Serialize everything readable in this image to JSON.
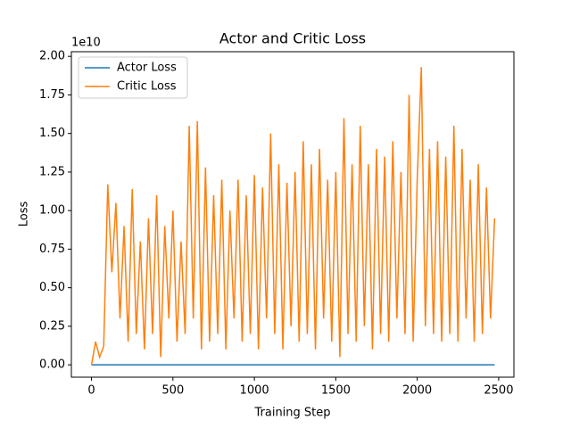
{
  "chart_data": {
    "type": "line",
    "title": "Actor and Critic Loss",
    "x_label": "Training Step",
    "y_label": "Loss",
    "y_offset_label": "1e10",
    "x": [
      0,
      25,
      50,
      75,
      100,
      125,
      150,
      175,
      200,
      225,
      250,
      275,
      300,
      325,
      350,
      375,
      400,
      425,
      450,
      475,
      500,
      525,
      550,
      575,
      600,
      625,
      650,
      675,
      700,
      725,
      750,
      775,
      800,
      825,
      850,
      875,
      900,
      925,
      950,
      975,
      1000,
      1025,
      1050,
      1075,
      1100,
      1125,
      1150,
      1175,
      1200,
      1225,
      1250,
      1275,
      1300,
      1325,
      1350,
      1375,
      1400,
      1425,
      1450,
      1475,
      1500,
      1525,
      1550,
      1575,
      1600,
      1625,
      1650,
      1675,
      1700,
      1725,
      1750,
      1775,
      1800,
      1825,
      1850,
      1875,
      1900,
      1925,
      1950,
      1975,
      2000,
      2025,
      2050,
      2075,
      2100,
      2125,
      2150,
      2175,
      2200,
      2225,
      2250,
      2275,
      2300,
      2325,
      2350,
      2375,
      2400,
      2425,
      2450,
      2475
    ],
    "series": [
      {
        "name": "Actor Loss",
        "color": "#1f77b4",
        "values": [
          0,
          0,
          0,
          0,
          0,
          0,
          0,
          0,
          0,
          0,
          0,
          0,
          0,
          0,
          0,
          0,
          0,
          0,
          0,
          0,
          0,
          0,
          0,
          0,
          0,
          0,
          0,
          0,
          0,
          0,
          0,
          0,
          0,
          0,
          0,
          0,
          0,
          0,
          0,
          0,
          0,
          0,
          0,
          0,
          0,
          0,
          0,
          0,
          0,
          0,
          0,
          0,
          0,
          0,
          0,
          0,
          0,
          0,
          0,
          0,
          0,
          0,
          0,
          0,
          0,
          0,
          0,
          0,
          0,
          0,
          0,
          0,
          0,
          0,
          0,
          0,
          0,
          0,
          0,
          0,
          0,
          0,
          0,
          0,
          0,
          0,
          0,
          0,
          0,
          0,
          0,
          0,
          0,
          0,
          0,
          0,
          0,
          0,
          0,
          0
        ]
      },
      {
        "name": "Critic Loss",
        "color": "#ff7f0e",
        "values": [
          0.0,
          0.15,
          0.05,
          0.12,
          1.17,
          0.6,
          1.05,
          0.3,
          0.9,
          0.15,
          1.14,
          0.2,
          0.8,
          0.1,
          0.95,
          0.2,
          1.1,
          0.05,
          0.9,
          0.3,
          1.0,
          0.15,
          0.8,
          0.2,
          1.55,
          0.3,
          1.58,
          0.1,
          1.28,
          0.15,
          1.1,
          0.2,
          1.2,
          0.1,
          1.0,
          0.3,
          1.2,
          0.15,
          1.1,
          0.2,
          1.23,
          0.1,
          1.15,
          0.3,
          1.5,
          0.2,
          1.3,
          0.1,
          1.18,
          0.25,
          1.25,
          0.15,
          1.45,
          0.2,
          1.3,
          0.1,
          1.4,
          0.3,
          1.2,
          0.15,
          1.25,
          0.05,
          1.6,
          0.2,
          1.3,
          0.15,
          1.55,
          0.25,
          1.3,
          0.1,
          1.4,
          0.2,
          1.35,
          0.15,
          1.45,
          0.3,
          1.25,
          0.2,
          1.75,
          0.15,
          1.2,
          1.93,
          0.25,
          1.4,
          0.2,
          1.45,
          0.15,
          1.35,
          0.2,
          1.55,
          0.15,
          1.4,
          0.3,
          1.2,
          0.15,
          1.3,
          0.2,
          1.15,
          0.3,
          0.95
        ]
      }
    ],
    "xlim": [
      -123.5,
      2593.5
    ],
    "xticks": [
      0,
      500,
      1000,
      1500,
      2000,
      2500
    ],
    "ylim": [
      -0.08,
      2.03
    ],
    "yticks": [
      {
        "value": 0,
        "label": "0.00"
      },
      {
        "value": 0.25,
        "label": "0.25"
      },
      {
        "value": 0.5,
        "label": "0.50"
      },
      {
        "value": 0.75,
        "label": "0.75"
      },
      {
        "value": 1.0,
        "label": "1.00"
      },
      {
        "value": 1.25,
        "label": "1.25"
      },
      {
        "value": 1.5,
        "label": "1.50"
      },
      {
        "value": 1.75,
        "label": "1.75"
      },
      {
        "value": 2.0,
        "label": "2.00"
      }
    ],
    "legend": "upper left"
  }
}
